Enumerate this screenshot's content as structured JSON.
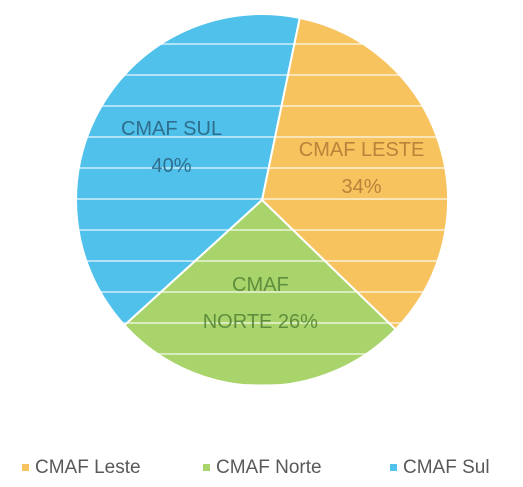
{
  "chart_data": {
    "type": "pie",
    "categories": [
      "CMAF Leste",
      "CMAF Norte",
      "CMAF Sul"
    ],
    "values": [
      34,
      26,
      40
    ],
    "value_labels": [
      [
        "CMAF LESTE",
        "34%"
      ],
      [
        "CMAF",
        "NORTE 26%"
      ],
      [
        "CMAF SUL",
        "40%"
      ]
    ],
    "colors": [
      "#f7c35f",
      "#a9d46c",
      "#4fc1ea"
    ],
    "label_colors": [
      "#b9833a",
      "#5f8f3c",
      "#2f6e8e"
    ],
    "legend": "bottom"
  }
}
